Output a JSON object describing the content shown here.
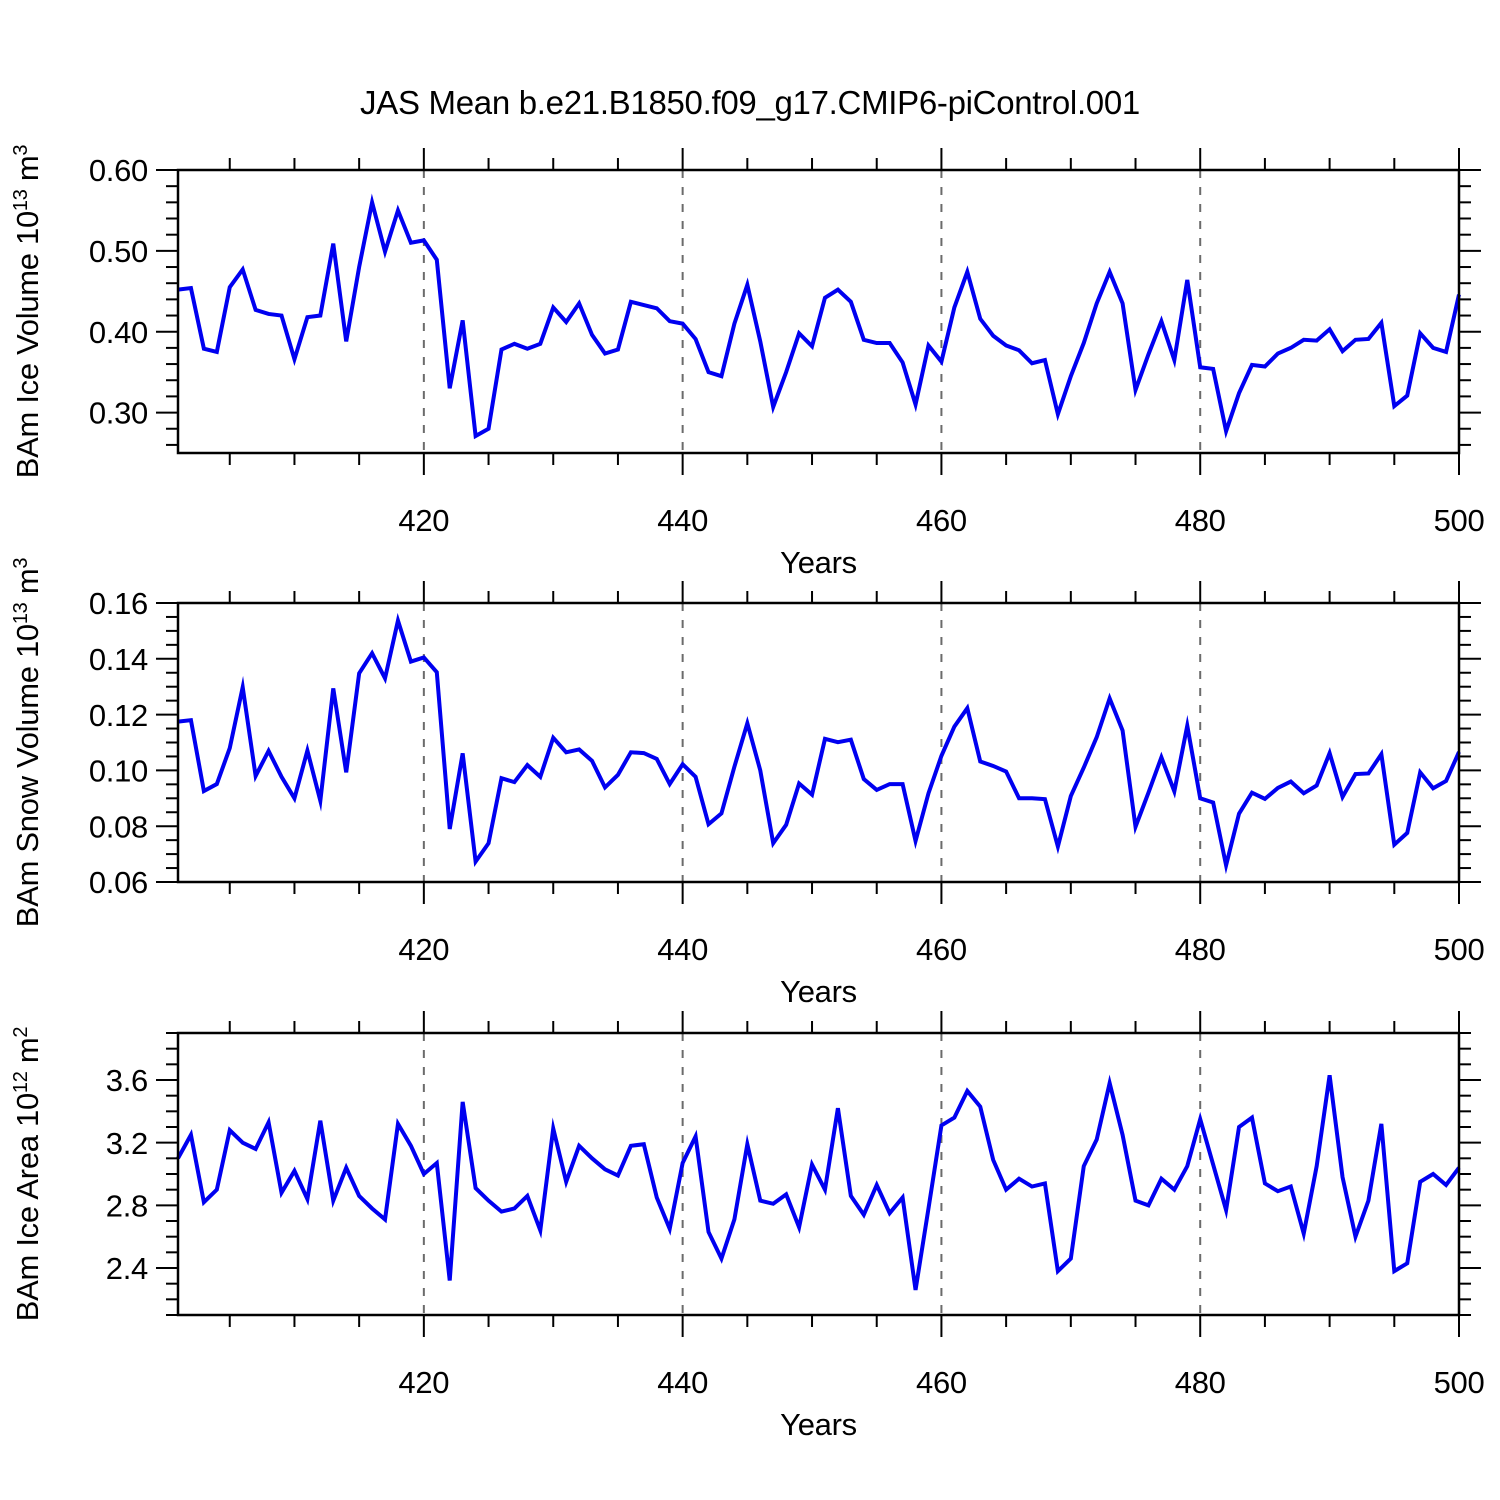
{
  "figure": {
    "title": "JAS Mean b.e21.B1850.f09_g17.CMIP6-piControl.001",
    "background": "#ffffff",
    "line_color": "#0000f0",
    "grid_color": "#6b6b6b",
    "axis_color": "#000000"
  },
  "chart_data": [
    {
      "type": "line",
      "id": "bam-ice-volume",
      "ylabel": "BAm Ice Volume 10¹³ m³",
      "ylabel_parts": [
        {
          "text": "BAm Ice Volume 10"
        },
        {
          "text": "13",
          "sup": true
        },
        {
          "text": " m"
        },
        {
          "text": "3",
          "sup": true
        }
      ],
      "xlabel": "Years",
      "x": {
        "start": 401,
        "end": 500,
        "step": 1
      },
      "xlim": [
        401,
        500
      ],
      "xticks": [
        420,
        440,
        460,
        480,
        500
      ],
      "xtick_labels": [
        "420",
        "440",
        "460",
        "480",
        "500"
      ],
      "x_minor_step": 5,
      "gridline_x": [
        420,
        440,
        460,
        480
      ],
      "ylim": [
        0.25,
        0.6
      ],
      "yticks": [
        0.3,
        0.4,
        0.5,
        0.6
      ],
      "ytick_labels": [
        "0.30",
        "0.40",
        "0.50",
        "0.60"
      ],
      "y_minor_step": 0.02,
      "grid": "x-dashed",
      "legend": "none",
      "values": [
        0.452,
        0.454,
        0.379,
        0.375,
        0.455,
        0.477,
        0.427,
        0.422,
        0.42,
        0.366,
        0.418,
        0.42,
        0.509,
        0.388,
        0.48,
        0.56,
        0.499,
        0.55,
        0.51,
        0.513,
        0.489,
        0.33,
        0.414,
        0.271,
        0.28,
        0.378,
        0.385,
        0.379,
        0.385,
        0.43,
        0.412,
        0.435,
        0.396,
        0.373,
        0.378,
        0.437,
        0.433,
        0.429,
        0.413,
        0.41,
        0.391,
        0.35,
        0.345,
        0.41,
        0.458,
        0.388,
        0.307,
        0.35,
        0.398,
        0.382,
        0.442,
        0.452,
        0.437,
        0.39,
        0.386,
        0.386,
        0.362,
        0.31,
        0.383,
        0.363,
        0.43,
        0.474,
        0.416,
        0.395,
        0.383,
        0.377,
        0.361,
        0.365,
        0.298,
        0.345,
        0.386,
        0.435,
        0.474,
        0.435,
        0.328,
        0.372,
        0.413,
        0.365,
        0.464,
        0.356,
        0.354,
        0.277,
        0.324,
        0.359,
        0.357,
        0.373,
        0.38,
        0.39,
        0.389,
        0.403,
        0.376,
        0.39,
        0.391,
        0.411,
        0.308,
        0.321,
        0.398,
        0.38,
        0.375,
        0.446
      ]
    },
    {
      "type": "line",
      "id": "bam-snow-volume",
      "ylabel": "BAm Snow Volume 10¹³ m³",
      "ylabel_parts": [
        {
          "text": "BAm Snow Volume 10"
        },
        {
          "text": "13",
          "sup": true
        },
        {
          "text": " m"
        },
        {
          "text": "3",
          "sup": true
        }
      ],
      "xlabel": "Years",
      "x": {
        "start": 401,
        "end": 500,
        "step": 1
      },
      "xlim": [
        401,
        500
      ],
      "xticks": [
        420,
        440,
        460,
        480,
        500
      ],
      "xtick_labels": [
        "420",
        "440",
        "460",
        "480",
        "500"
      ],
      "x_minor_step": 5,
      "gridline_x": [
        420,
        440,
        460,
        480
      ],
      "ylim": [
        0.06,
        0.16
      ],
      "yticks": [
        0.06,
        0.08,
        0.1,
        0.12,
        0.14,
        0.16
      ],
      "ytick_labels": [
        "0.06",
        "0.08",
        "0.10",
        "0.12",
        "0.14",
        "0.16"
      ],
      "y_minor_step": 0.005,
      "grid": "x-dashed",
      "legend": "none",
      "values": [
        0.1175,
        0.118,
        0.0926,
        0.0951,
        0.108,
        0.1298,
        0.098,
        0.107,
        0.0977,
        0.09,
        0.1071,
        0.0891,
        0.1294,
        0.0993,
        0.1348,
        0.142,
        0.133,
        0.1537,
        0.139,
        0.1405,
        0.1352,
        0.079,
        0.1061,
        0.0673,
        0.0739,
        0.0972,
        0.0958,
        0.1019,
        0.0977,
        0.1117,
        0.1065,
        0.1075,
        0.1034,
        0.0939,
        0.0984,
        0.1065,
        0.1062,
        0.1041,
        0.0951,
        0.1022,
        0.0977,
        0.0807,
        0.0846,
        0.1013,
        0.1169,
        0.1,
        0.0739,
        0.0805,
        0.0953,
        0.0913,
        0.1113,
        0.1101,
        0.111,
        0.0969,
        0.093,
        0.0951,
        0.0951,
        0.0747,
        0.0918,
        0.1052,
        0.1157,
        0.1223,
        0.1032,
        0.1016,
        0.0996,
        0.09,
        0.09,
        0.0897,
        0.0727,
        0.0908,
        0.101,
        0.1119,
        0.1258,
        0.1143,
        0.0798,
        0.092,
        0.1047,
        0.0925,
        0.116,
        0.09,
        0.0885,
        0.066,
        0.0845,
        0.092,
        0.0898,
        0.0937,
        0.096,
        0.0918,
        0.0946,
        0.1062,
        0.0905,
        0.0987,
        0.0989,
        0.1058,
        0.0734,
        0.0776,
        0.0993,
        0.0936,
        0.0962,
        0.1066
      ]
    },
    {
      "type": "line",
      "id": "bam-ice-area",
      "ylabel": "BAm Ice Area 10¹² m²",
      "ylabel_parts": [
        {
          "text": "BAm Ice Area 10"
        },
        {
          "text": "12",
          "sup": true
        },
        {
          "text": " m"
        },
        {
          "text": "2",
          "sup": true
        }
      ],
      "xlabel": "Years",
      "x": {
        "start": 401,
        "end": 500,
        "step": 1
      },
      "xlim": [
        401,
        500
      ],
      "xticks": [
        420,
        440,
        460,
        480,
        500
      ],
      "xtick_labels": [
        "420",
        "440",
        "460",
        "480",
        "500"
      ],
      "x_minor_step": 5,
      "gridline_x": [
        420,
        440,
        460,
        480
      ],
      "ylim": [
        2.1,
        3.9
      ],
      "yticks": [
        2.4,
        2.8,
        3.2,
        3.6
      ],
      "ytick_labels": [
        "2.4",
        "2.8",
        "3.2",
        "3.6"
      ],
      "y_minor_step": 0.1,
      "grid": "x-dashed",
      "legend": "none",
      "values": [
        3.1,
        3.25,
        2.82,
        2.9,
        3.28,
        3.2,
        3.16,
        3.33,
        2.88,
        3.02,
        2.84,
        3.34,
        2.83,
        3.04,
        2.86,
        2.78,
        2.71,
        3.32,
        3.18,
        3.0,
        3.07,
        2.32,
        3.46,
        2.91,
        2.83,
        2.76,
        2.78,
        2.86,
        2.64,
        3.29,
        2.95,
        3.18,
        3.1,
        3.03,
        2.99,
        3.18,
        3.19,
        2.85,
        2.65,
        3.07,
        3.24,
        2.63,
        2.46,
        2.71,
        3.19,
        2.83,
        2.81,
        2.87,
        2.66,
        3.06,
        2.9,
        3.42,
        2.86,
        2.74,
        2.93,
        2.75,
        2.85,
        2.26,
        2.78,
        3.31,
        3.36,
        3.53,
        3.43,
        3.09,
        2.9,
        2.97,
        2.92,
        2.94,
        2.38,
        2.46,
        3.05,
        3.22,
        3.58,
        3.25,
        2.83,
        2.8,
        2.97,
        2.9,
        3.05,
        3.35,
        3.06,
        2.77,
        3.3,
        3.36,
        2.94,
        2.89,
        2.92,
        2.62,
        3.05,
        3.63,
        2.98,
        2.6,
        2.83,
        3.32,
        2.38,
        2.43,
        2.95,
        3.0,
        2.93,
        3.04
      ]
    }
  ]
}
